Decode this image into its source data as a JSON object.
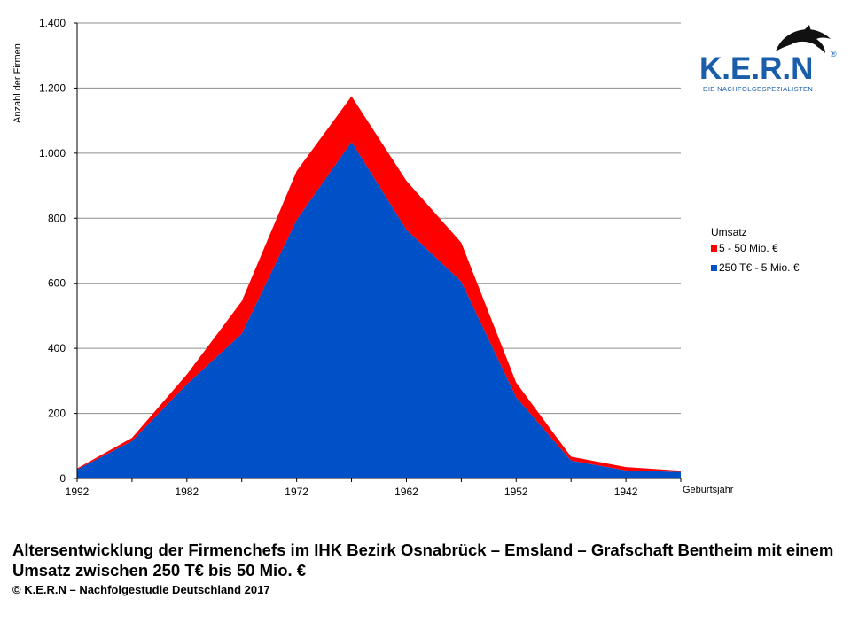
{
  "chart_data": {
    "type": "area",
    "stacked": true,
    "xlabel": "Geburtsjahr",
    "ylabel": "Anzahl der Firmen",
    "x": [
      1992,
      1987,
      1982,
      1977,
      1972,
      1967,
      1962,
      1957,
      1952,
      1947,
      1942,
      1937
    ],
    "x_tick_labels": [
      "1992",
      "1982",
      "1972",
      "1962",
      "1952",
      "1942"
    ],
    "x_ticks": [
      1992,
      1982,
      1972,
      1962,
      1952,
      1942
    ],
    "ylim": [
      0,
      1400
    ],
    "y_ticks": [
      0,
      200,
      400,
      600,
      800,
      1000,
      1200,
      1400
    ],
    "y_tick_labels": [
      "0",
      "200",
      "400",
      "600",
      "800",
      "1.000",
      "1.200",
      "1.400"
    ],
    "grid": true,
    "legend_title": "Umsatz",
    "legend_position": "right",
    "series": [
      {
        "name": "250 T€ - 5 Mio. €",
        "color": "#0050c8",
        "values": [
          28,
          115,
          290,
          445,
          795,
          1035,
          765,
          605,
          250,
          55,
          25,
          20
        ]
      },
      {
        "name": "5 - 50 Mio. €",
        "color": "#ff0000",
        "values": [
          3,
          10,
          30,
          100,
          150,
          140,
          150,
          120,
          45,
          12,
          10,
          4
        ]
      }
    ]
  },
  "caption": {
    "title": "Altersentwicklung der Firmenchefs im IHK Bezirk Osnabrück – Emsland – Grafschaft Bentheim mit einem Umsatz zwischen 250 T€ bis 50 Mio. €",
    "copyright": "© K.E.R.N – Nachfolgestudie Deutschland 2017"
  },
  "logo": {
    "name": "K.E.R.N",
    "tagline": "DIE NACHFOLGESPEZIALISTEN",
    "reg": "®"
  }
}
